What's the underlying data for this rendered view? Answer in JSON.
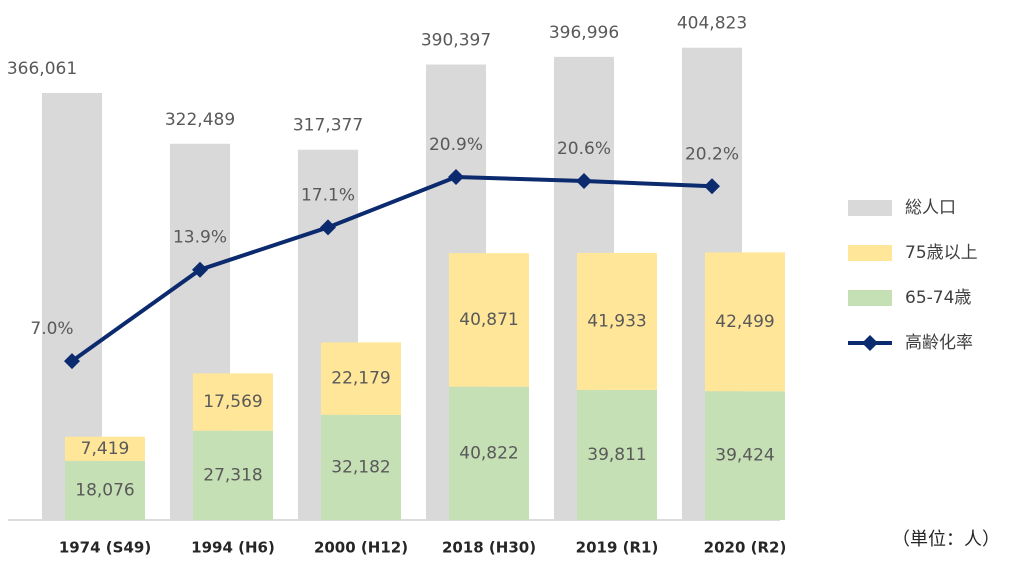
{
  "chart_data": {
    "type": "combo",
    "categories": [
      "1974 (S49)",
      "1994 (H6)",
      "2000 (H12)",
      "2018 (H30)",
      "2019 (R1)",
      "2020 (R2)"
    ],
    "series": [
      {
        "name": "総人口",
        "type": "bar",
        "axis": "y",
        "color": "#d9d9d9",
        "values": [
          366061,
          322489,
          317377,
          390397,
          396996,
          404823
        ],
        "value_labels": [
          "366,061",
          "322,489",
          "317,377",
          "390,397",
          "396,996",
          "404,823"
        ]
      },
      {
        "name": "75歳以上",
        "type": "stacked",
        "axis": "y2",
        "color": "#ffe699",
        "values": [
          7419,
          17569,
          22179,
          40871,
          41933,
          42499
        ],
        "value_labels": [
          "7,419",
          "17,569",
          "22,179",
          "40,871",
          "41,933",
          "42,499"
        ]
      },
      {
        "name": "65-74歳",
        "type": "stacked",
        "axis": "y2",
        "color": "#c5e0b4",
        "values": [
          18076,
          27318,
          32182,
          40822,
          39811,
          39424
        ],
        "value_labels": [
          "18,076",
          "27,318",
          "32,182",
          "40,822",
          "39,811",
          "39,424"
        ]
      },
      {
        "name": "高齢化率",
        "type": "line",
        "axis": "y3",
        "color": "#0c2a6e",
        "values": [
          7.0,
          13.9,
          17.1,
          20.9,
          20.6,
          20.2
        ],
        "value_labels": [
          "7.0%",
          "13.9%",
          "17.1%",
          "20.9%",
          "20.6%",
          "20.2%"
        ]
      }
    ],
    "ylim": [
      0,
      420000
    ],
    "y2lim": [
      0,
      150000
    ],
    "y3lim": [
      -5,
      32
    ],
    "note": "（単位：人）"
  }
}
